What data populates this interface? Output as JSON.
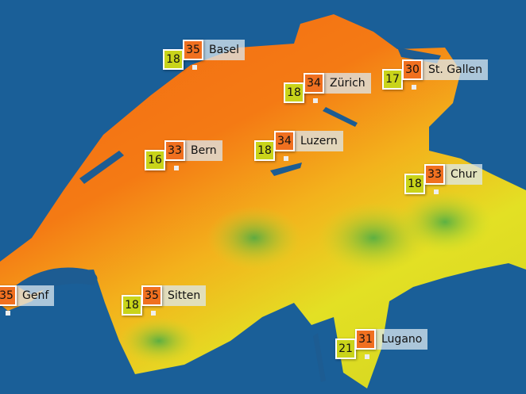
{
  "colors": {
    "water": "#1a5f98",
    "lake": "#1d5c92",
    "hot": "#f05a10",
    "warm": "#f7a21b",
    "mild": "#e7e21a",
    "cool": "#3fae4a",
    "min_box": "#c9d41a",
    "max_box": "#f07020"
  },
  "stations": [
    {
      "name": "Basel",
      "min": "18",
      "max": "35"
    },
    {
      "name": "Zürich",
      "min": "18",
      "max": "34"
    },
    {
      "name": "St. Gallen",
      "min": "17",
      "max": "30"
    },
    {
      "name": "Bern",
      "min": "16",
      "max": "33"
    },
    {
      "name": "Luzern",
      "min": "18",
      "max": "34"
    },
    {
      "name": "Chur",
      "min": "18",
      "max": "33"
    },
    {
      "name": "Genf",
      "min": "",
      "max": "35"
    },
    {
      "name": "Sitten",
      "min": "18",
      "max": "35"
    },
    {
      "name": "Lugano",
      "min": "21",
      "max": "31"
    }
  ]
}
